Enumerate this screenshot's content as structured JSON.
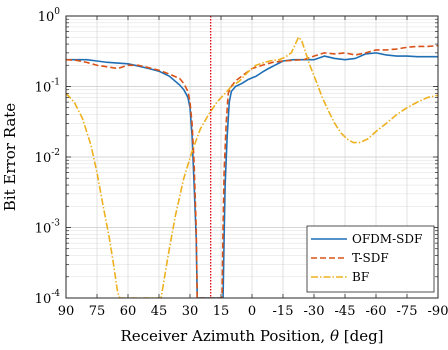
{
  "chart_data": {
    "type": "line",
    "xlabel_main": "Receiver Azimuth Position, ",
    "xlabel_symbol": "θ",
    "xlabel_unit": " [deg]",
    "ylabel": "Bit Error Rate",
    "xlim": [
      90,
      -90
    ],
    "x_reversed": true,
    "ylim": [
      0.0001,
      1
    ],
    "yscale": "log",
    "grid": true,
    "legend_position": "bottom-right",
    "x_ticks": [
      {
        "value": 90,
        "label": "90"
      },
      {
        "value": 75,
        "label": "75"
      },
      {
        "value": 60,
        "label": "60"
      },
      {
        "value": 45,
        "label": "45"
      },
      {
        "value": 30,
        "label": "30"
      },
      {
        "value": 15,
        "label": "15"
      },
      {
        "value": 0,
        "label": "0"
      },
      {
        "value": -15,
        "label": "-15"
      },
      {
        "value": -30,
        "label": "-30"
      },
      {
        "value": -45,
        "label": "-45"
      },
      {
        "value": -60,
        "label": "-60"
      },
      {
        "value": -75,
        "label": "-75"
      },
      {
        "value": -90,
        "label": "-90"
      }
    ],
    "y_ticks": [
      {
        "value": 1,
        "base": "10",
        "exp": "0"
      },
      {
        "value": 0.1,
        "base": "10",
        "exp": "-1"
      },
      {
        "value": 0.01,
        "base": "10",
        "exp": "-2"
      },
      {
        "value": 0.001,
        "base": "10",
        "exp": "-3"
      },
      {
        "value": 0.0001,
        "base": "10",
        "exp": "-4"
      }
    ],
    "reference_line": {
      "x": 20,
      "color": "#e8000b"
    },
    "series": [
      {
        "name": "OFDM-SDF",
        "color": "#1f6fb5",
        "dash": "solid",
        "points": [
          [
            90,
            0.24
          ],
          [
            85,
            0.24
          ],
          [
            80,
            0.24
          ],
          [
            75,
            0.23
          ],
          [
            70,
            0.22
          ],
          [
            65,
            0.215
          ],
          [
            60,
            0.21
          ],
          [
            55,
            0.195
          ],
          [
            50,
            0.18
          ],
          [
            45,
            0.165
          ],
          [
            40,
            0.14
          ],
          [
            35,
            0.105
          ],
          [
            33,
            0.09
          ],
          [
            31,
            0.07
          ],
          [
            30,
            0.05
          ],
          [
            29,
            0.02
          ],
          [
            28,
            0.004
          ],
          [
            27,
            0.0007
          ],
          [
            26.5,
            0.0001
          ],
          [
            14,
            0.0001
          ],
          [
            13.5,
            0.0007
          ],
          [
            13,
            0.004
          ],
          [
            12,
            0.02
          ],
          [
            11,
            0.06
          ],
          [
            10,
            0.085
          ],
          [
            8,
            0.1
          ],
          [
            5,
            0.11
          ],
          [
            2,
            0.125
          ],
          [
            -2,
            0.14
          ],
          [
            -5,
            0.16
          ],
          [
            -8,
            0.18
          ],
          [
            -11,
            0.2
          ],
          [
            -15,
            0.23
          ],
          [
            -20,
            0.24
          ],
          [
            -25,
            0.24
          ],
          [
            -30,
            0.24
          ],
          [
            -35,
            0.27
          ],
          [
            -40,
            0.25
          ],
          [
            -45,
            0.24
          ],
          [
            -50,
            0.25
          ],
          [
            -55,
            0.29
          ],
          [
            -60,
            0.3
          ],
          [
            -65,
            0.28
          ],
          [
            -70,
            0.27
          ],
          [
            -75,
            0.27
          ],
          [
            -80,
            0.265
          ],
          [
            -85,
            0.265
          ],
          [
            -90,
            0.265
          ]
        ]
      },
      {
        "name": "T-SDF",
        "color": "#d95319",
        "dash": "dashed",
        "points": [
          [
            90,
            0.24
          ],
          [
            85,
            0.235
          ],
          [
            80,
            0.22
          ],
          [
            75,
            0.2
          ],
          [
            70,
            0.19
          ],
          [
            65,
            0.18
          ],
          [
            60,
            0.2
          ],
          [
            55,
            0.2
          ],
          [
            50,
            0.185
          ],
          [
            45,
            0.17
          ],
          [
            40,
            0.15
          ],
          [
            35,
            0.13
          ],
          [
            33,
            0.11
          ],
          [
            31,
            0.085
          ],
          [
            30,
            0.06
          ],
          [
            29,
            0.03
          ],
          [
            28,
            0.008
          ],
          [
            27,
            0.001
          ],
          [
            26.5,
            0.0001
          ],
          [
            14.5,
            0.0001
          ],
          [
            14,
            0.001
          ],
          [
            13.5,
            0.006
          ],
          [
            12.5,
            0.03
          ],
          [
            11.5,
            0.08
          ],
          [
            10,
            0.1
          ],
          [
            8,
            0.12
          ],
          [
            5,
            0.14
          ],
          [
            0,
            0.18
          ],
          [
            -5,
            0.2
          ],
          [
            -10,
            0.22
          ],
          [
            -15,
            0.23
          ],
          [
            -20,
            0.235
          ],
          [
            -25,
            0.24
          ],
          [
            -30,
            0.27
          ],
          [
            -35,
            0.3
          ],
          [
            -40,
            0.29
          ],
          [
            -45,
            0.3
          ],
          [
            -50,
            0.28
          ],
          [
            -55,
            0.3
          ],
          [
            -60,
            0.33
          ],
          [
            -65,
            0.33
          ],
          [
            -70,
            0.34
          ],
          [
            -75,
            0.36
          ],
          [
            -80,
            0.37
          ],
          [
            -85,
            0.37
          ],
          [
            -90,
            0.38
          ]
        ]
      },
      {
        "name": "BF",
        "color": "#edb120",
        "dash": "dashdot",
        "points": [
          [
            90,
            0.08
          ],
          [
            86,
            0.06
          ],
          [
            82,
            0.035
          ],
          [
            78,
            0.015
          ],
          [
            75,
            0.006
          ],
          [
            72,
            0.002
          ],
          [
            69,
            0.0007
          ],
          [
            67,
            0.0003
          ],
          [
            65,
            0.00012
          ],
          [
            64,
            0.0001
          ],
          [
            44,
            0.0001
          ],
          [
            43,
            0.00015
          ],
          [
            40,
            0.0005
          ],
          [
            37,
            0.0015
          ],
          [
            33,
            0.005
          ],
          [
            29,
            0.012
          ],
          [
            25,
            0.025
          ],
          [
            21,
            0.04
          ],
          [
            17,
            0.06
          ],
          [
            13,
            0.08
          ],
          [
            10,
            0.1
          ],
          [
            6,
            0.12
          ],
          [
            2,
            0.16
          ],
          [
            -2,
            0.2
          ],
          [
            -6,
            0.22
          ],
          [
            -10,
            0.235
          ],
          [
            -13,
            0.24
          ],
          [
            -16,
            0.26
          ],
          [
            -19,
            0.3
          ],
          [
            -21,
            0.4
          ],
          [
            -22.5,
            0.5
          ],
          [
            -24,
            0.45
          ],
          [
            -26,
            0.3
          ],
          [
            -28,
            0.2
          ],
          [
            -31,
            0.12
          ],
          [
            -34,
            0.07
          ],
          [
            -37,
            0.045
          ],
          [
            -40,
            0.03
          ],
          [
            -43,
            0.022
          ],
          [
            -46,
            0.018
          ],
          [
            -49,
            0.016
          ],
          [
            -52,
            0.016
          ],
          [
            -56,
            0.018
          ],
          [
            -60,
            0.023
          ],
          [
            -65,
            0.03
          ],
          [
            -70,
            0.04
          ],
          [
            -75,
            0.05
          ],
          [
            -80,
            0.06
          ],
          [
            -85,
            0.07
          ],
          [
            -90,
            0.075
          ]
        ]
      }
    ]
  }
}
